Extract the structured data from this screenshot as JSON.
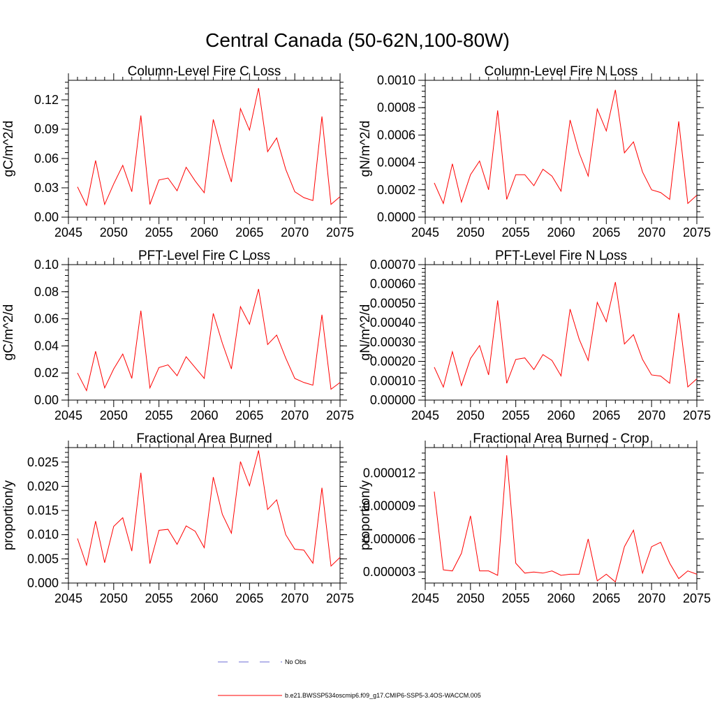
{
  "title": "Central Canada (50-62N,100-80W)",
  "colors": {
    "model": "#ff0000",
    "obs": "#6b6bd6",
    "axis": "#000000"
  },
  "legend": {
    "obs_label": "No Obs",
    "model_label": "b.e21.BWSSP534oscmip6.f09_g17.CMIP6-SSP5-3.4OS-WACCM.005"
  },
  "chart_data": [
    {
      "type": "line",
      "title": "Column-Level Fire C Loss",
      "ylabel": "gC/m^2/d",
      "xlim": [
        2045,
        2075
      ],
      "ylim": [
        0,
        0.14
      ],
      "xticks": [
        2045,
        2050,
        2055,
        2060,
        2065,
        2070,
        2075
      ],
      "xtick_labels": [
        "2045",
        "2050",
        "2055",
        "2060",
        "2065",
        "2070",
        "2075"
      ],
      "yticks": [
        0,
        0.03,
        0.06,
        0.09,
        0.12
      ],
      "ytick_labels": [
        "0.00",
        "0.03",
        "0.06",
        "0.09",
        "0.12"
      ],
      "x": [
        2046,
        2047,
        2048,
        2049,
        2050,
        2051,
        2052,
        2053,
        2054,
        2055,
        2056,
        2057,
        2058,
        2059,
        2060,
        2061,
        2062,
        2063,
        2064,
        2065,
        2066,
        2067,
        2068,
        2069,
        2070,
        2071,
        2072,
        2073,
        2074,
        2075
      ],
      "series": [
        {
          "name": "b.e21.BWSSP534oscmip6.f09_g17.CMIP6-SSP5-3.4OS-WACCM.005",
          "values": [
            0.031,
            0.012,
            0.058,
            0.013,
            0.034,
            0.053,
            0.026,
            0.104,
            0.013,
            0.038,
            0.04,
            0.027,
            0.051,
            0.037,
            0.025,
            0.1,
            0.065,
            0.036,
            0.111,
            0.089,
            0.132,
            0.067,
            0.081,
            0.049,
            0.026,
            0.02,
            0.017,
            0.103,
            0.013,
            0.021
          ]
        }
      ]
    },
    {
      "type": "line",
      "title": "Column-Level Fire N Loss",
      "ylabel": "gN/m^2/d",
      "xlim": [
        2045,
        2075
      ],
      "ylim": [
        0,
        0.001
      ],
      "xticks": [
        2045,
        2050,
        2055,
        2060,
        2065,
        2070,
        2075
      ],
      "xtick_labels": [
        "2045",
        "2050",
        "2055",
        "2060",
        "2065",
        "2070",
        "2075"
      ],
      "yticks": [
        0,
        0.0002,
        0.0004,
        0.0006,
        0.0008,
        0.001
      ],
      "ytick_labels": [
        "0.0000",
        "0.0002",
        "0.0004",
        "0.0006",
        "0.0008",
        "0.0010"
      ],
      "x": [
        2046,
        2047,
        2048,
        2049,
        2050,
        2051,
        2052,
        2053,
        2054,
        2055,
        2056,
        2057,
        2058,
        2059,
        2060,
        2061,
        2062,
        2063,
        2064,
        2065,
        2066,
        2067,
        2068,
        2069,
        2070,
        2071,
        2072,
        2073,
        2074,
        2075
      ],
      "series": [
        {
          "name": "b.e21.BWSSP534oscmip6.f09_g17.CMIP6-SSP5-3.4OS-WACCM.005",
          "values": [
            0.00025,
            0.0001,
            0.00039,
            0.00011,
            0.00031,
            0.00041,
            0.0002,
            0.00078,
            0.00013,
            0.00031,
            0.00031,
            0.00023,
            0.00035,
            0.0003,
            0.00019,
            0.00071,
            0.00047,
            0.0003,
            0.00079,
            0.00063,
            0.00093,
            0.00047,
            0.00055,
            0.00033,
            0.0002,
            0.00018,
            0.00013,
            0.0007,
            0.0001,
            0.00016
          ]
        }
      ]
    },
    {
      "type": "line",
      "title": "PFT-Level Fire C Loss",
      "ylabel": "gC/m^2/d",
      "xlim": [
        2045,
        2075
      ],
      "ylim": [
        0,
        0.1
      ],
      "xticks": [
        2045,
        2050,
        2055,
        2060,
        2065,
        2070,
        2075
      ],
      "xtick_labels": [
        "2045",
        "2050",
        "2055",
        "2060",
        "2065",
        "2070",
        "2075"
      ],
      "yticks": [
        0,
        0.02,
        0.04,
        0.06,
        0.08,
        0.1
      ],
      "ytick_labels": [
        "0.00",
        "0.02",
        "0.04",
        "0.06",
        "0.08",
        "0.10"
      ],
      "x": [
        2046,
        2047,
        2048,
        2049,
        2050,
        2051,
        2052,
        2053,
        2054,
        2055,
        2056,
        2057,
        2058,
        2059,
        2060,
        2061,
        2062,
        2063,
        2064,
        2065,
        2066,
        2067,
        2068,
        2069,
        2070,
        2071,
        2072,
        2073,
        2074,
        2075
      ],
      "series": [
        {
          "name": "b.e21.BWSSP534oscmip6.f09_g17.CMIP6-SSP5-3.4OS-WACCM.005",
          "values": [
            0.02,
            0.007,
            0.036,
            0.009,
            0.023,
            0.034,
            0.016,
            0.066,
            0.009,
            0.024,
            0.026,
            0.018,
            0.032,
            0.024,
            0.016,
            0.064,
            0.042,
            0.023,
            0.069,
            0.056,
            0.082,
            0.041,
            0.048,
            0.031,
            0.016,
            0.013,
            0.011,
            0.063,
            0.008,
            0.013
          ]
        }
      ]
    },
    {
      "type": "line",
      "title": "PFT-Level Fire N Loss",
      "ylabel": "gN/m^2/d",
      "xlim": [
        2045,
        2075
      ],
      "ylim": [
        0,
        0.0007
      ],
      "xticks": [
        2045,
        2050,
        2055,
        2060,
        2065,
        2070,
        2075
      ],
      "xtick_labels": [
        "2045",
        "2050",
        "2055",
        "2060",
        "2065",
        "2070",
        "2075"
      ],
      "yticks": [
        0,
        0.0001,
        0.0002,
        0.0003,
        0.0004,
        0.0005,
        0.0006,
        0.0007
      ],
      "ytick_labels": [
        "0.00000",
        "0.00010",
        "0.00020",
        "0.00030",
        "0.00040",
        "0.00050",
        "0.00060",
        "0.00070"
      ],
      "x": [
        2046,
        2047,
        2048,
        2049,
        2050,
        2051,
        2052,
        2053,
        2054,
        2055,
        2056,
        2057,
        2058,
        2059,
        2060,
        2061,
        2062,
        2063,
        2064,
        2065,
        2066,
        2067,
        2068,
        2069,
        2070,
        2071,
        2072,
        2073,
        2074,
        2075
      ],
      "series": [
        {
          "name": "b.e21.BWSSP534oscmip6.f09_g17.CMIP6-SSP5-3.4OS-WACCM.005",
          "values": [
            0.00017,
            6.7e-05,
            0.00025,
            7.5e-05,
            0.000215,
            0.000282,
            0.00013,
            0.000515,
            8.7e-05,
            0.00021,
            0.000218,
            0.000158,
            0.000235,
            0.000205,
            0.000125,
            0.00047,
            0.000315,
            0.000205,
            0.000505,
            0.000405,
            0.00061,
            0.00029,
            0.000338,
            0.00021,
            0.00013,
            0.000124,
            8.7e-05,
            0.00045,
            6.8e-05,
            0.00011
          ]
        }
      ]
    },
    {
      "type": "line",
      "title": "Fractional Area Burned",
      "ylabel": "proportion/y",
      "xlim": [
        2045,
        2075
      ],
      "ylim": [
        0,
        0.028
      ],
      "xticks": [
        2045,
        2050,
        2055,
        2060,
        2065,
        2070,
        2075
      ],
      "xtick_labels": [
        "2045",
        "2050",
        "2055",
        "2060",
        "2065",
        "2070",
        "2075"
      ],
      "yticks": [
        0,
        0.005,
        0.01,
        0.015,
        0.02,
        0.025
      ],
      "ytick_labels": [
        "0.000",
        "0.005",
        "0.010",
        "0.015",
        "0.020",
        "0.025"
      ],
      "x": [
        2046,
        2047,
        2048,
        2049,
        2050,
        2051,
        2052,
        2053,
        2054,
        2055,
        2056,
        2057,
        2058,
        2059,
        2060,
        2061,
        2062,
        2063,
        2064,
        2065,
        2066,
        2067,
        2068,
        2069,
        2070,
        2071,
        2072,
        2073,
        2074,
        2075
      ],
      "series": [
        {
          "name": "b.e21.BWSSP534oscmip6.f09_g17.CMIP6-SSP5-3.4OS-WACCM.005",
          "values": [
            0.0092,
            0.0037,
            0.0128,
            0.0042,
            0.0117,
            0.0135,
            0.0066,
            0.0228,
            0.004,
            0.0109,
            0.0111,
            0.008,
            0.0118,
            0.0107,
            0.0073,
            0.0219,
            0.0142,
            0.0103,
            0.0251,
            0.0201,
            0.0274,
            0.0152,
            0.0172,
            0.01,
            0.007,
            0.0068,
            0.0041,
            0.0197,
            0.0035,
            0.0053
          ]
        }
      ]
    },
    {
      "type": "line",
      "title": "Fractional Area Burned - Crop",
      "ylabel": "proportion/y",
      "xlim": [
        2045,
        2075
      ],
      "ylim": [
        2e-06,
        1.43e-05
      ],
      "xticks": [
        2045,
        2050,
        2055,
        2060,
        2065,
        2070,
        2075
      ],
      "xtick_labels": [
        "2045",
        "2050",
        "2055",
        "2060",
        "2065",
        "2070",
        "2075"
      ],
      "yticks": [
        3e-06,
        6e-06,
        9e-06,
        1.2e-05
      ],
      "ytick_labels": [
        "0.000003",
        "0.000006",
        "0.000009",
        "0.000012"
      ],
      "x": [
        2046,
        2047,
        2048,
        2049,
        2050,
        2051,
        2052,
        2053,
        2054,
        2055,
        2056,
        2057,
        2058,
        2059,
        2060,
        2061,
        2062,
        2063,
        2064,
        2065,
        2066,
        2067,
        2068,
        2069,
        2070,
        2071,
        2072,
        2073,
        2074,
        2075
      ],
      "series": [
        {
          "name": "b.e21.BWSSP534oscmip6.f09_g17.CMIP6-SSP5-3.4OS-WACCM.005",
          "values": [
            1.03e-05,
            3.2e-06,
            3.1e-06,
            4.7e-06,
            8.1e-06,
            3.1e-06,
            3.1e-06,
            2.7e-06,
            1.36e-05,
            3.8e-06,
            2.9e-06,
            3e-06,
            2.9e-06,
            3.1e-06,
            2.7e-06,
            2.8e-06,
            2.8e-06,
            6e-06,
            2.2e-06,
            2.8e-06,
            2.1e-06,
            5.3e-06,
            6.8e-06,
            2.9e-06,
            5.3e-06,
            5.7e-06,
            3.8e-06,
            2.4e-06,
            3.1e-06,
            2.8e-06
          ]
        }
      ]
    }
  ]
}
